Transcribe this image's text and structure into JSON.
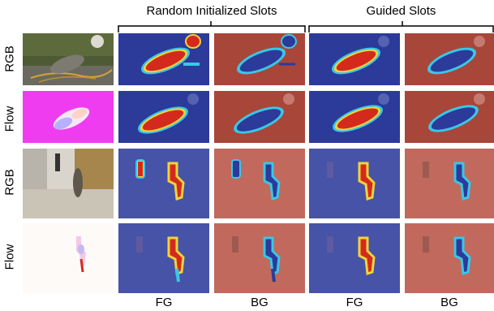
{
  "headers": {
    "group1": "Random Initialized Slots",
    "group2": "Guided Slots"
  },
  "row_labels": [
    "RGB",
    "Flow",
    "RGB",
    "Flow"
  ],
  "col_labels": [
    "FG",
    "BG",
    "FG",
    "BG"
  ],
  "colors": {
    "fg_overlay": "#2c3a9a",
    "bg_overlay": "#a8463a",
    "heat_red": "#d42a1e",
    "heat_yellow": "#f2d33a",
    "heat_cyan": "#39c7e6",
    "flow_magenta": "#f03cf0"
  }
}
